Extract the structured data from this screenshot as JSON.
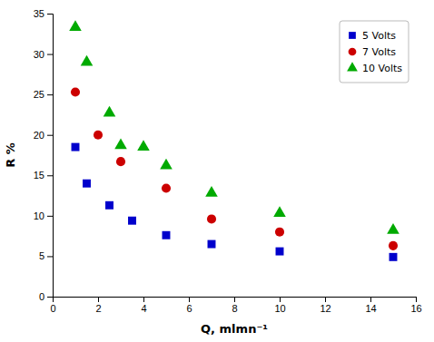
{
  "chart_data": {
    "type": "scatter",
    "xlabel": "Q, mlmn⁻¹",
    "ylabel": "R %",
    "series": [
      {
        "name": "5 Volts",
        "color": "#0000CC",
        "marker": "square",
        "x": [
          1,
          1.5,
          2.5,
          3.5,
          5,
          7,
          10,
          15
        ],
        "values": [
          18.5,
          14.0,
          11.3,
          9.4,
          7.6,
          6.5,
          5.6,
          4.9
        ]
      },
      {
        "name": "7 Volts",
        "color": "#CC0000",
        "marker": "circle",
        "x": [
          1,
          2,
          3,
          5,
          7,
          10,
          15
        ],
        "values": [
          25.3,
          20.0,
          16.7,
          13.4,
          9.6,
          8.0,
          6.3
        ]
      },
      {
        "name": "10 Volts",
        "color": "#00AA00",
        "marker": "triangle",
        "x": [
          1,
          1.5,
          2.5,
          3,
          4,
          5,
          7,
          10,
          15
        ],
        "values": [
          33.3,
          29.0,
          22.7,
          18.7,
          18.5,
          16.2,
          12.8,
          10.3,
          8.2
        ]
      }
    ],
    "xlim": [
      0,
      16
    ],
    "ylim": [
      0,
      35
    ],
    "xticks": [
      0,
      2,
      4,
      6,
      8,
      10,
      12,
      14,
      16
    ],
    "yticks": [
      0,
      5,
      10,
      15,
      20,
      25,
      30,
      35
    ],
    "grid": false,
    "legend": "upper right"
  }
}
